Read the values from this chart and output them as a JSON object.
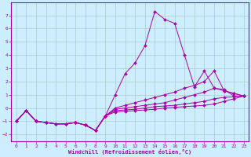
{
  "xlabel": "Windchill (Refroidissement éolien,°C)",
  "bg_color": "#cceeff",
  "grid_color": "#aacccc",
  "line_color": "#aa00aa",
  "xlim": [
    -0.5,
    23.5
  ],
  "ylim": [
    -2.5,
    8.0
  ],
  "xticks": [
    0,
    1,
    2,
    3,
    4,
    5,
    6,
    7,
    8,
    9,
    10,
    11,
    12,
    13,
    14,
    15,
    16,
    17,
    18,
    19,
    20,
    21,
    22,
    23
  ],
  "yticks": [
    -2,
    -1,
    0,
    1,
    2,
    3,
    4,
    5,
    6,
    7
  ],
  "curves": [
    {
      "x": [
        0,
        1,
        2,
        3,
        4,
        5,
        6,
        7,
        8,
        9,
        10,
        11,
        12,
        13,
        14,
        15,
        16,
        17,
        18,
        19,
        20,
        21,
        22,
        23
      ],
      "y": [
        -1.0,
        -0.2,
        -1.0,
        -1.1,
        -1.2,
        -1.2,
        -1.1,
        -1.3,
        -1.7,
        -0.6,
        1.0,
        2.6,
        3.4,
        4.7,
        7.3,
        6.7,
        6.4,
        4.0,
        1.6,
        2.8,
        1.5,
        1.4,
        0.9,
        0.9
      ]
    },
    {
      "x": [
        0,
        1,
        2,
        3,
        4,
        5,
        6,
        7,
        8,
        9,
        10,
        11,
        12,
        13,
        14,
        15,
        16,
        17,
        18,
        19,
        20,
        21,
        22,
        23
      ],
      "y": [
        -1.0,
        -0.2,
        -1.0,
        -1.1,
        -1.2,
        -1.2,
        -1.1,
        -1.3,
        -1.7,
        -0.6,
        0.0,
        0.2,
        0.4,
        0.6,
        0.8,
        1.0,
        1.2,
        1.5,
        1.7,
        2.0,
        2.8,
        1.3,
        1.1,
        0.9
      ]
    },
    {
      "x": [
        0,
        1,
        2,
        3,
        4,
        5,
        6,
        7,
        8,
        9,
        10,
        11,
        12,
        13,
        14,
        15,
        16,
        17,
        18,
        19,
        20,
        21,
        22,
        23
      ],
      "y": [
        -1.0,
        -0.2,
        -1.0,
        -1.1,
        -1.2,
        -1.2,
        -1.1,
        -1.3,
        -1.7,
        -0.6,
        -0.1,
        0.0,
        0.1,
        0.2,
        0.3,
        0.4,
        0.6,
        0.8,
        1.0,
        1.2,
        1.5,
        1.3,
        1.1,
        0.9
      ]
    },
    {
      "x": [
        0,
        1,
        2,
        3,
        4,
        5,
        6,
        7,
        8,
        9,
        10,
        11,
        12,
        13,
        14,
        15,
        16,
        17,
        18,
        19,
        20,
        21,
        22,
        23
      ],
      "y": [
        -1.0,
        -0.2,
        -1.0,
        -1.1,
        -1.2,
        -1.2,
        -1.1,
        -1.3,
        -1.7,
        -0.6,
        -0.2,
        -0.15,
        -0.1,
        0.0,
        0.1,
        0.15,
        0.2,
        0.3,
        0.4,
        0.5,
        0.7,
        0.8,
        0.85,
        0.9
      ]
    },
    {
      "x": [
        0,
        1,
        2,
        3,
        4,
        5,
        6,
        7,
        8,
        9,
        10,
        11,
        12,
        13,
        14,
        15,
        16,
        17,
        18,
        19,
        20,
        21,
        22,
        23
      ],
      "y": [
        -1.0,
        -0.2,
        -1.0,
        -1.1,
        -1.2,
        -1.2,
        -1.1,
        -1.3,
        -1.7,
        -0.6,
        -0.3,
        -0.25,
        -0.2,
        -0.15,
        -0.1,
        0.0,
        0.05,
        0.1,
        0.15,
        0.2,
        0.3,
        0.5,
        0.7,
        0.9
      ]
    }
  ]
}
